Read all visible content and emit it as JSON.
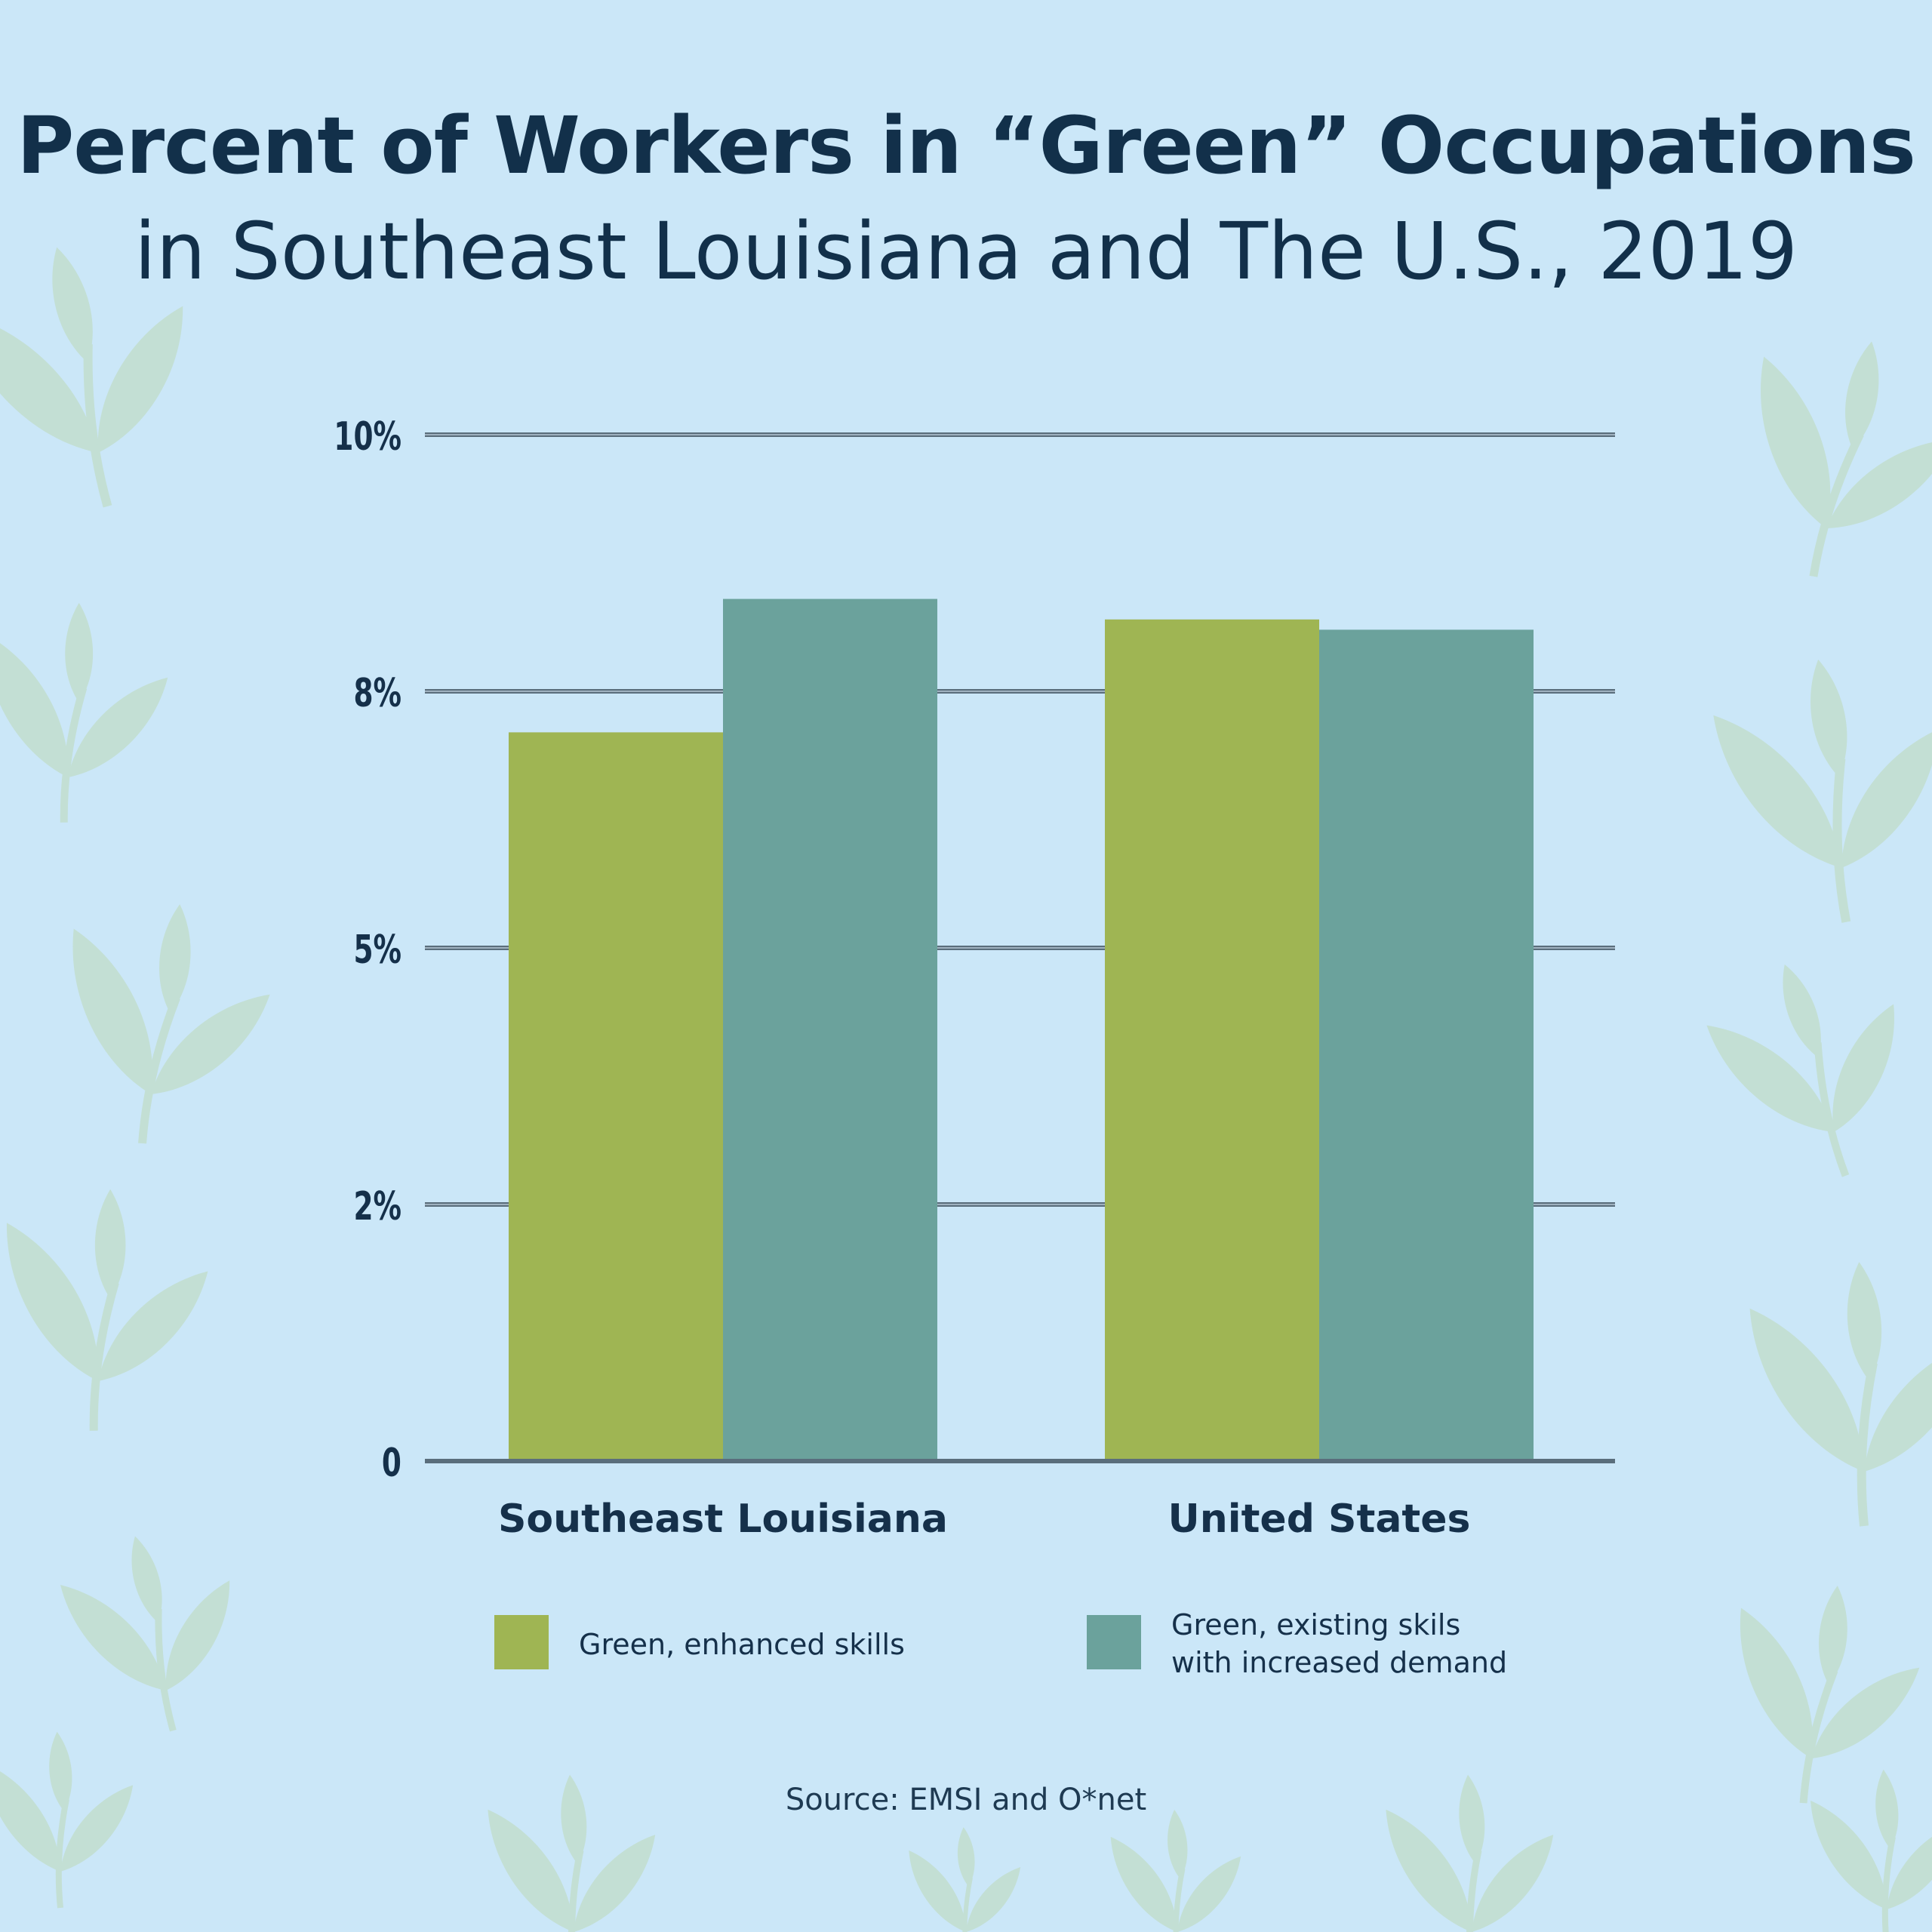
{
  "title": "Percent of Workers in “Green” Occupations",
  "subtitle": "in Southeast Louisiana and The U.S., 2019",
  "source": "Source: EMSI and O*net",
  "colors": {
    "background": "#cbe7f8",
    "leaf": "#c3dfd4",
    "text": "#15304a",
    "gridline": "#5a6e7c"
  },
  "chart_data": {
    "type": "bar",
    "categories": [
      "Southeast Louisiana",
      "United States"
    ],
    "series": [
      {
        "name": "Green, enhanced skills",
        "values": [
          7.1,
          8.2
        ],
        "color": "#9fb553"
      },
      {
        "name": "Green, existing skils with increased demand",
        "values": [
          8.4,
          8.1
        ],
        "color": "#6ba29c"
      }
    ],
    "legend_lines": [
      [
        "Green, enhanced skills"
      ],
      [
        "Green, existing skils",
        "with increased demand"
      ]
    ],
    "yticks": [
      {
        "value": 0,
        "label": "0"
      },
      {
        "value": 2.5,
        "label": "2%"
      },
      {
        "value": 5,
        "label": "5%"
      },
      {
        "value": 7.5,
        "label": "8%"
      },
      {
        "value": 10,
        "label": "10%"
      }
    ],
    "ylim": [
      0,
      10
    ],
    "grid": true,
    "legend_position": "bottom"
  }
}
